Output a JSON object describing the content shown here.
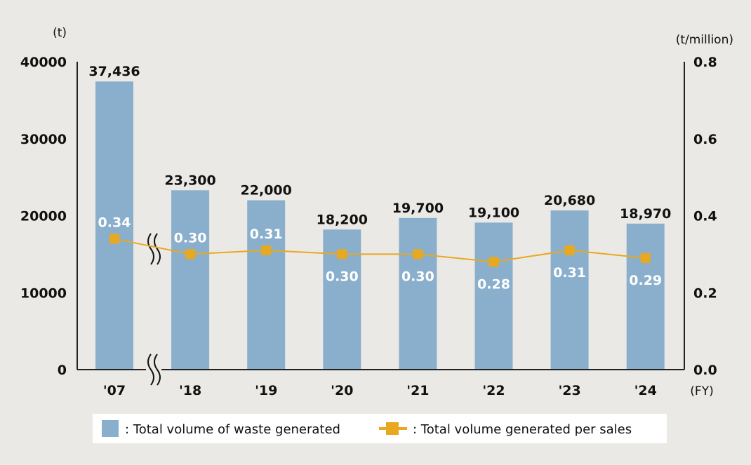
{
  "chart_data": {
    "type": "bar+line",
    "categories": [
      "'07",
      "'18",
      "'19",
      "'20",
      "'21",
      "'22",
      "'23",
      "'24"
    ],
    "highlight_category": "'24",
    "x_unit": "(FY)",
    "series": [
      {
        "name": "Total volume of waste generated",
        "type": "bar",
        "axis": "left",
        "values": [
          37436,
          23300,
          22000,
          18200,
          19700,
          19100,
          20680,
          18970
        ],
        "labels": [
          "37,436",
          "23,300",
          "22,000",
          "18,200",
          "19,700",
          "19,100",
          "20,680",
          "18,970"
        ]
      },
      {
        "name": "Total volume generated per sales",
        "type": "line",
        "axis": "right",
        "values": [
          0.34,
          0.3,
          0.31,
          0.3,
          0.3,
          0.28,
          0.31,
          0.29
        ],
        "labels": [
          "0.34",
          "0.30",
          "0.31",
          "0.30",
          "0.30",
          "0.28",
          "0.31",
          "0.29"
        ]
      }
    ],
    "left_axis": {
      "unit": "(t)",
      "range": [
        0,
        40000
      ],
      "ticks": [
        "0",
        "10000",
        "20000",
        "30000",
        "40000"
      ]
    },
    "right_axis": {
      "unit": "(t/million)",
      "range": [
        0,
        0.8
      ],
      "ticks": [
        "0.0",
        "0.2",
        "0.4",
        "0.6",
        "0.8"
      ]
    },
    "axis_break": "between '07 and '18",
    "grid": false,
    "legend_position": "bottom",
    "colors": {
      "bar": "#8aafcc",
      "line": "#e8a820",
      "highlight": "#e0202a",
      "background": "#ebe9e5"
    }
  }
}
